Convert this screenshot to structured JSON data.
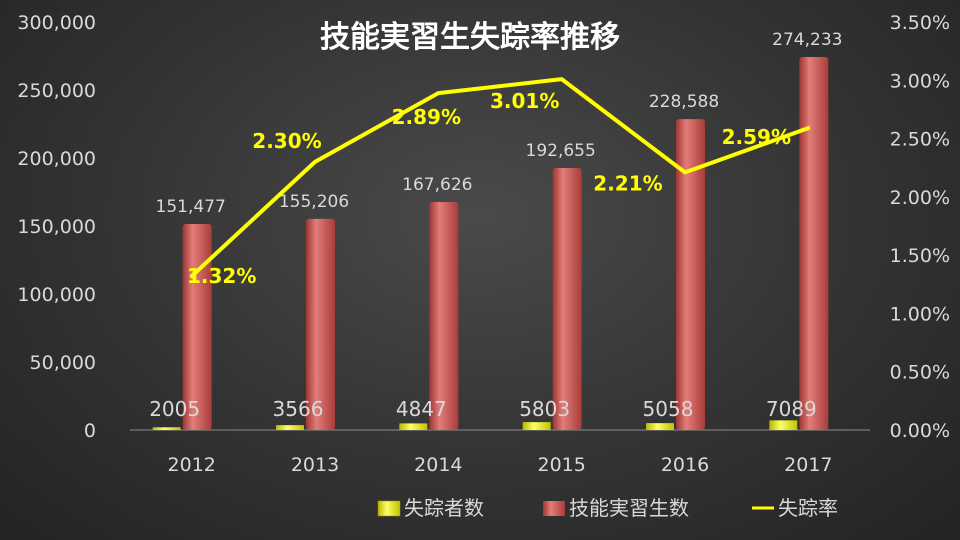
{
  "chart_data": {
    "type": "bar",
    "title": "技能実習生失踪率推移",
    "categories": [
      "2012",
      "2013",
      "2014",
      "2015",
      "2016",
      "2017"
    ],
    "series": [
      {
        "name": "失踪者数",
        "type": "bar",
        "axis": "left",
        "values": [
          2005,
          3566,
          4847,
          5803,
          5058,
          7089
        ],
        "color": "#ffff33"
      },
      {
        "name": "技能実習生数",
        "type": "bar",
        "axis": "left",
        "values": [
          151477,
          155206,
          167626,
          192655,
          228588,
          274233
        ],
        "color": "#c0504d"
      },
      {
        "name": "失踪率",
        "type": "line",
        "axis": "right",
        "values": [
          1.32,
          2.3,
          2.89,
          3.01,
          2.21,
          2.59
        ],
        "color": "#ffff00"
      }
    ],
    "y_left": {
      "min": 0,
      "max": 300000,
      "ticks": [
        "0",
        "50,000",
        "100,000",
        "150,000",
        "200,000",
        "250,000",
        "300,000"
      ]
    },
    "y_right": {
      "min": 0,
      "max": 3.5,
      "ticks": [
        "0.00%",
        "0.50%",
        "1.00%",
        "1.50%",
        "2.00%",
        "2.50%",
        "3.00%",
        "3.50%"
      ]
    },
    "labels": {
      "missing": [
        "2005",
        "3566",
        "4847",
        "5803",
        "5058",
        "7089"
      ],
      "trainees": [
        "151,477",
        "155,206",
        "167,626",
        "192,655",
        "228,588",
        "274,233"
      ],
      "rate": [
        "1.32%",
        "2.30%",
        "2.89%",
        "3.01%",
        "2.21%",
        "2.59%"
      ]
    },
    "legend_position": "bottom",
    "grid": false
  }
}
